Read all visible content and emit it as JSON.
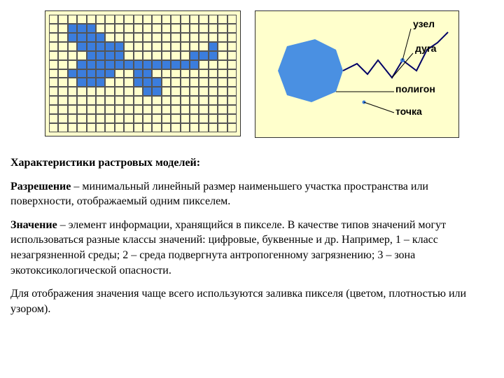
{
  "figures": {
    "raster": {
      "cols": 20,
      "rows": 13,
      "bg_color": "#ffffcc",
      "cell_border": "#555555",
      "fill_color": "#3b7ddd",
      "filled_cells": [
        [
          1,
          2
        ],
        [
          1,
          3
        ],
        [
          1,
          4
        ],
        [
          2,
          2
        ],
        [
          2,
          3
        ],
        [
          2,
          4
        ],
        [
          2,
          5
        ],
        [
          3,
          3
        ],
        [
          3,
          4
        ],
        [
          3,
          5
        ],
        [
          3,
          6
        ],
        [
          3,
          7
        ],
        [
          3,
          17
        ],
        [
          4,
          4
        ],
        [
          4,
          5
        ],
        [
          4,
          6
        ],
        [
          4,
          7
        ],
        [
          4,
          15
        ],
        [
          4,
          16
        ],
        [
          4,
          17
        ],
        [
          5,
          3
        ],
        [
          5,
          4
        ],
        [
          5,
          5
        ],
        [
          5,
          6
        ],
        [
          5,
          7
        ],
        [
          5,
          8
        ],
        [
          5,
          9
        ],
        [
          5,
          10
        ],
        [
          5,
          11
        ],
        [
          5,
          12
        ],
        [
          5,
          13
        ],
        [
          5,
          14
        ],
        [
          5,
          15
        ],
        [
          6,
          2
        ],
        [
          6,
          3
        ],
        [
          6,
          4
        ],
        [
          6,
          5
        ],
        [
          6,
          6
        ],
        [
          6,
          9
        ],
        [
          6,
          10
        ],
        [
          7,
          3
        ],
        [
          7,
          4
        ],
        [
          7,
          5
        ],
        [
          7,
          9
        ],
        [
          7,
          10
        ],
        [
          7,
          11
        ],
        [
          8,
          10
        ],
        [
          8,
          11
        ]
      ]
    },
    "vector": {
      "bg_color": "#ffffcc",
      "labels": {
        "node": "узел",
        "arc": "дуга",
        "polygon": "полигон",
        "point": "точка"
      },
      "polygon_fill": "#4a90e2",
      "line_color": "#000066",
      "node_color": "#3b7ddd",
      "point_color": "#3b7ddd"
    }
  },
  "text": {
    "heading": "Характеристики растровых моделей:",
    "p1_term": "Разрешение",
    "p1_rest": " – минимальный линейный размер наименьшего участка пространства или поверхности, отображаемый одним пикселем.",
    "p2_term": "Значение",
    "p2_rest": " – элемент информации, хранящийся в пикселе. В качестве типов значений могут использоваться разные классы значений: цифровые, буквенные и др. Например, 1 – класс незагрязненной среды; 2 – среда подвергнута антропогенному загрязнению; 3 – зона экотоксикологической опасности.",
    "p3": "Для отображения значения чаще всего используются заливка пикселя (цветом, плотностью или узором)."
  }
}
